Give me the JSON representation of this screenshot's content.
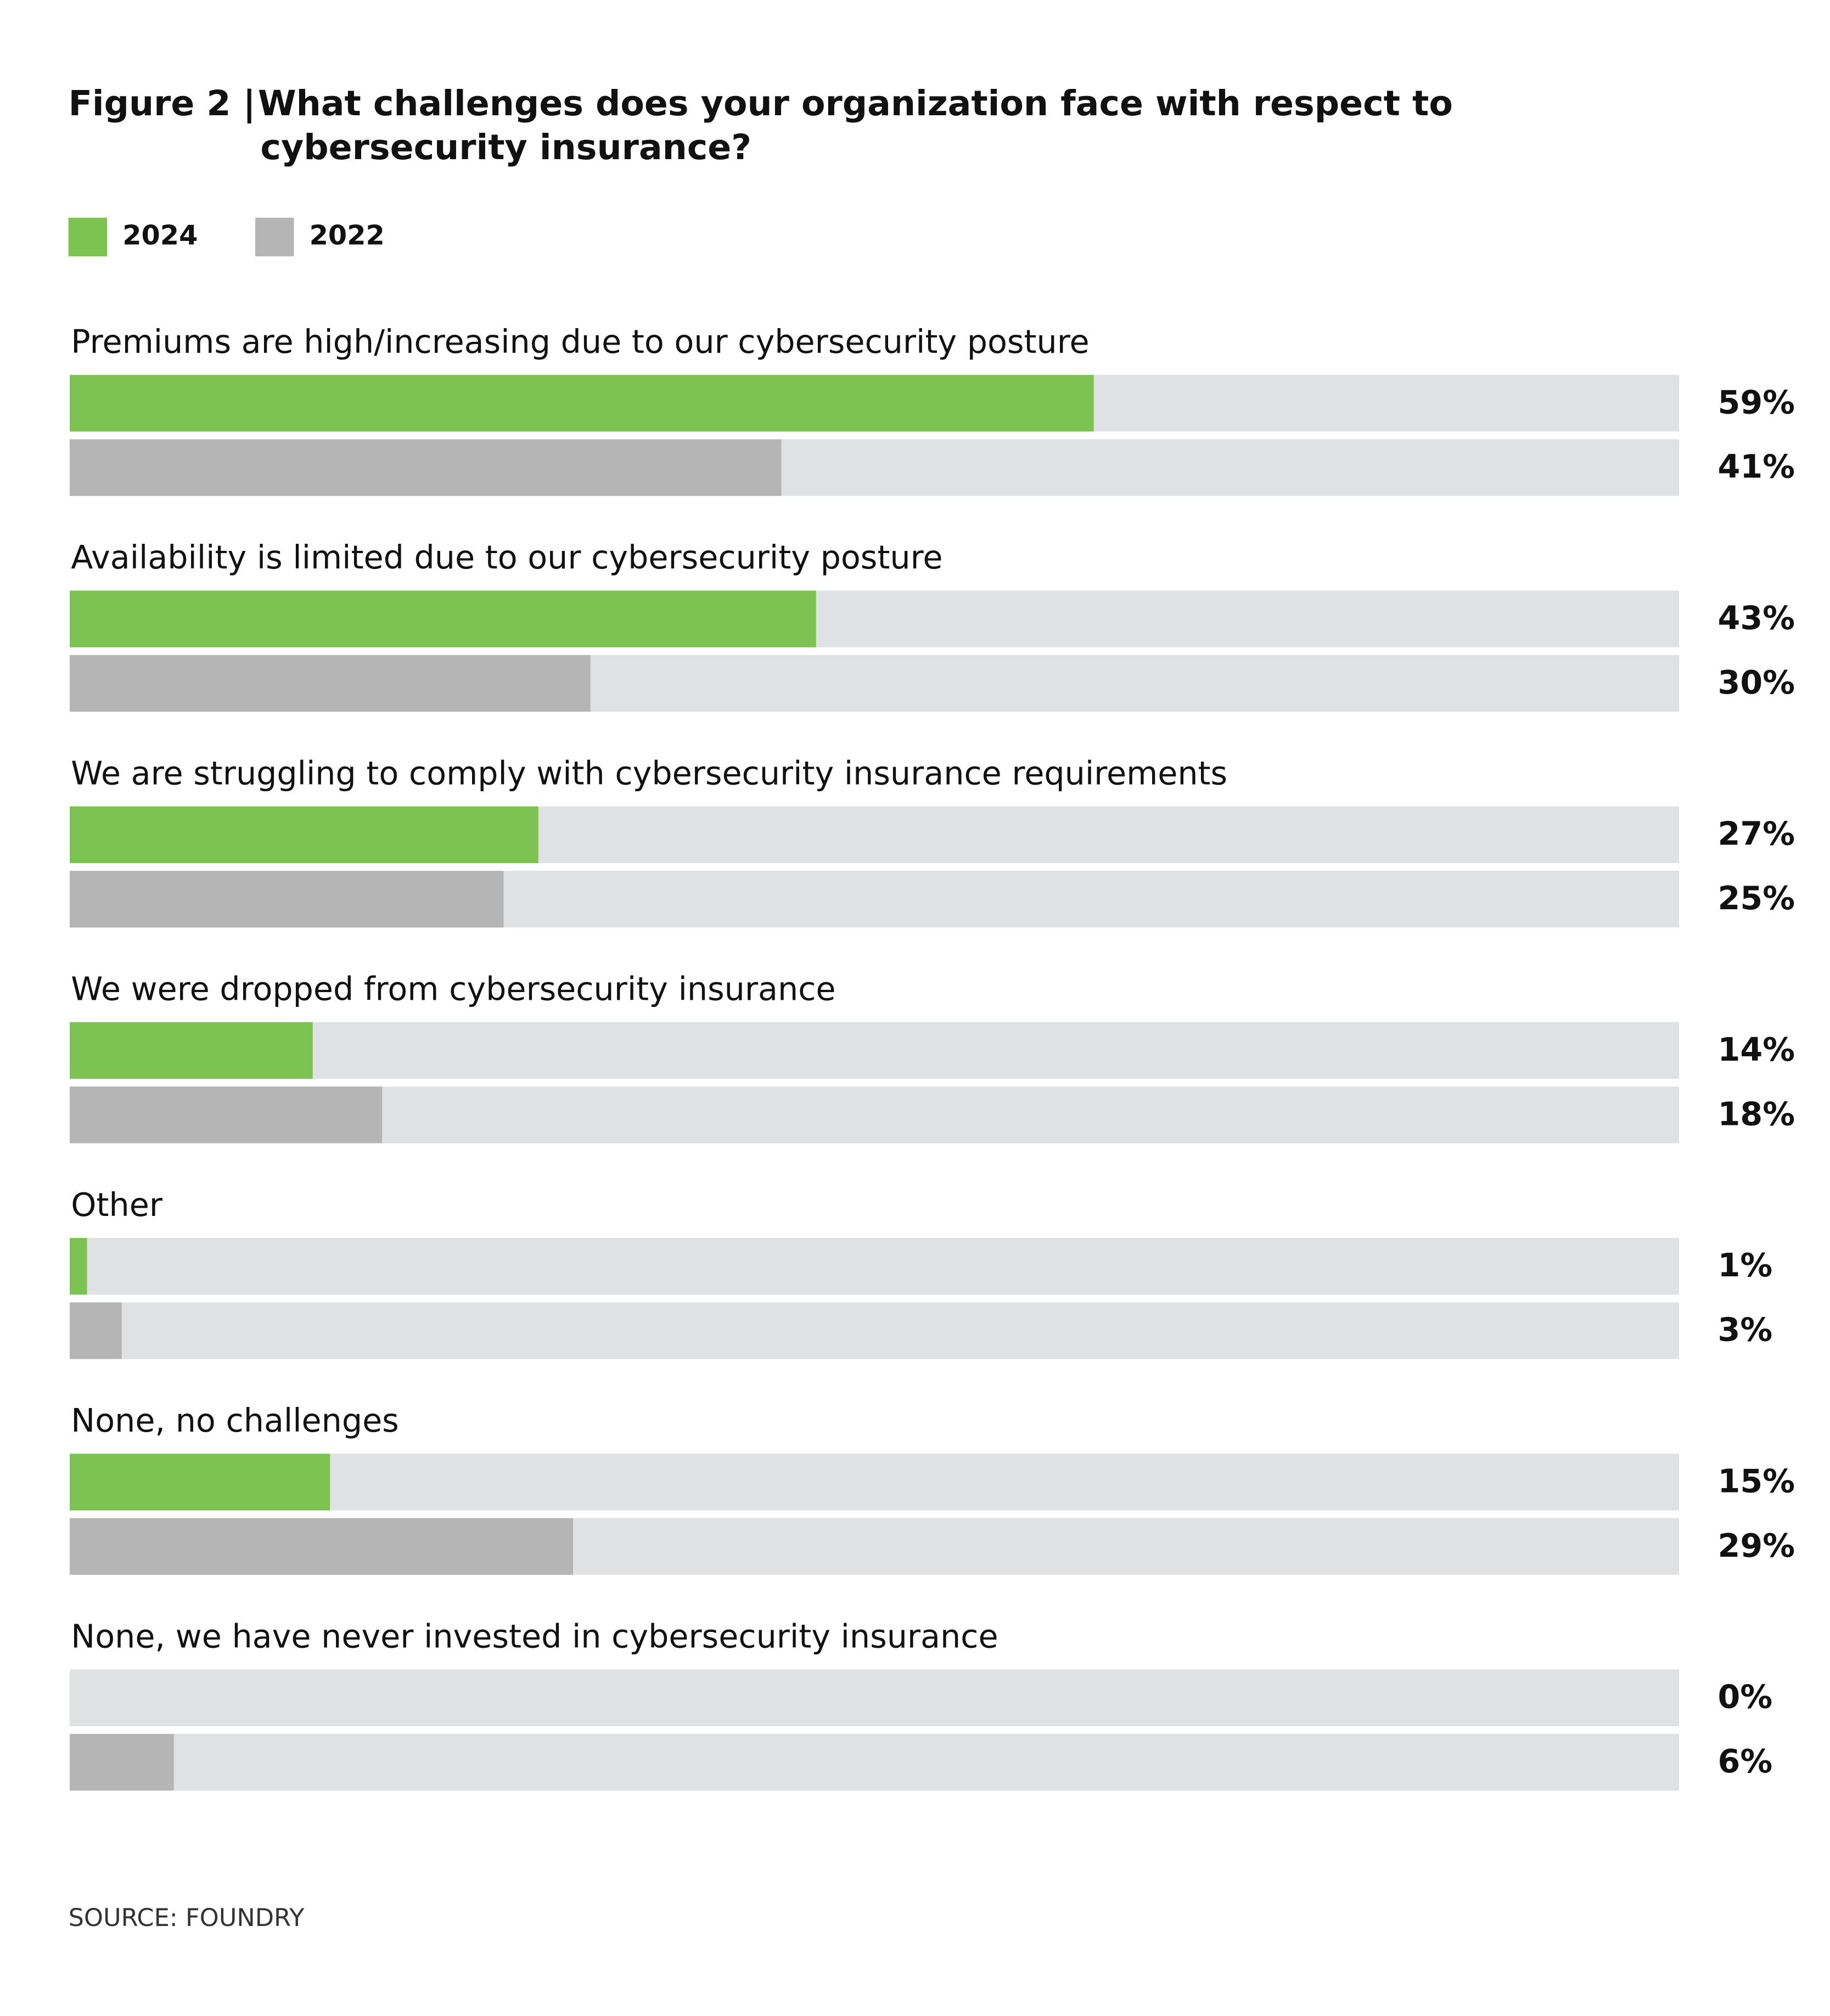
{
  "chart_data": {
    "type": "bar",
    "orientation": "horizontal",
    "figure_label": "Figure 2  |",
    "title": [
      "What challenges does your organization face with respect to",
      "cybersecurity insurance?"
    ],
    "categories": [
      "Premiums are high/increasing due to our cybersecurity posture",
      "Availability is limited due to our cybersecurity posture",
      "We are struggling to comply with cybersecurity insurance requirements",
      "We were dropped from cybersecurity insurance",
      "Other",
      "None, no challenges",
      "None, we have never invested in cybersecurity insurance"
    ],
    "series": [
      {
        "name": "2024",
        "color": "#7dc352",
        "values": [
          59,
          43,
          27,
          14,
          1,
          15,
          0
        ],
        "value_labels": [
          "59%",
          "43%",
          "27%",
          "14%",
          "1%",
          "15%",
          "0%"
        ]
      },
      {
        "name": "2022",
        "color": "#b5b5b5",
        "values": [
          41,
          30,
          25,
          18,
          3,
          29,
          6
        ],
        "value_labels": [
          "41%",
          "30%",
          "25%",
          "18%",
          "3%",
          "29%",
          "6%"
        ]
      }
    ],
    "xlim": [
      0,
      100
    ],
    "source": "SOURCE: FOUNDRY"
  }
}
